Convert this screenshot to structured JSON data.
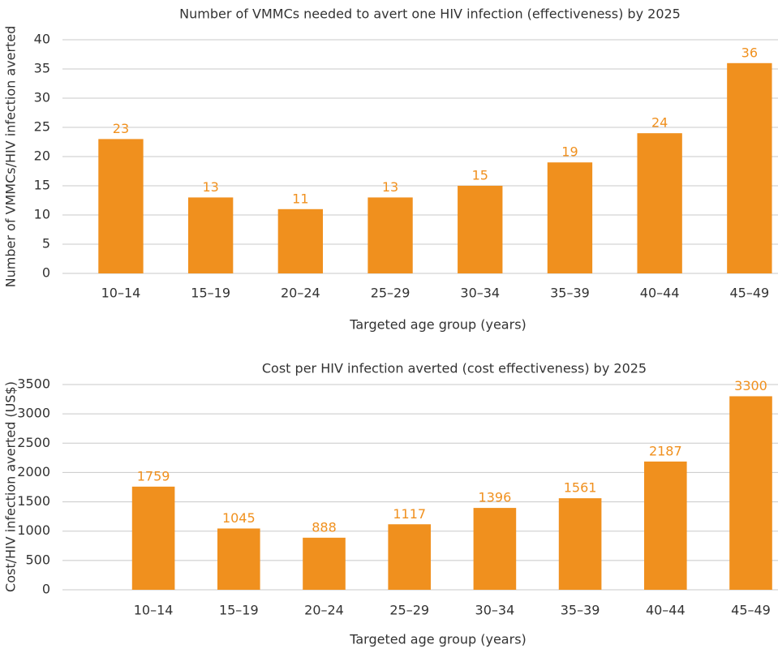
{
  "chart_data": [
    {
      "type": "bar",
      "title": "Number of VMMCs needed to avert one HIV infection (effectiveness) by 2025",
      "x_label": "Targeted age group (years)",
      "y_label": "Number of VMMCs/HIV infection averted",
      "categories": [
        "10–14",
        "15–19",
        "20–24",
        "25–29",
        "30–34",
        "35–39",
        "40–44",
        "45–49"
      ],
      "values": [
        23,
        13,
        11,
        13,
        15,
        19,
        24,
        36
      ],
      "color": "#f0901e",
      "ylim": [
        0,
        40
      ],
      "yticks": [
        0,
        5,
        10,
        15,
        20,
        25,
        30,
        35,
        40
      ],
      "grid": true
    },
    {
      "type": "bar",
      "title": "Cost per HIV infection averted (cost effectiveness) by 2025",
      "x_label": "Targeted age group (years)",
      "y_label": "Cost/HIV infection averted (US$)",
      "categories": [
        "10–14",
        "15–19",
        "20–24",
        "25–29",
        "30–34",
        "35–39",
        "40–44",
        "45–49"
      ],
      "values": [
        1759,
        1045,
        888,
        1117,
        1396,
        1561,
        2187,
        3300
      ],
      "color": "#f0901e",
      "ylim": [
        0,
        3500
      ],
      "yticks": [
        0,
        500,
        1000,
        1500,
        2000,
        2500,
        3000,
        3500
      ],
      "grid": true
    }
  ]
}
